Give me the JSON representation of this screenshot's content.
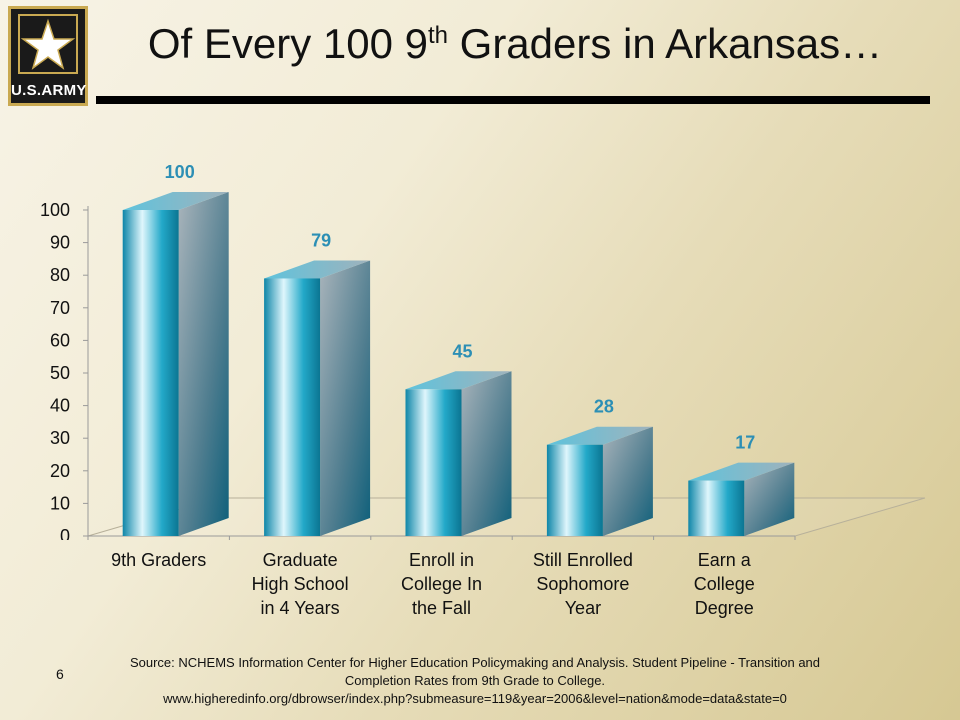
{
  "slide": {
    "title_main": "Of Every 100 9",
    "title_sup": "th",
    "title_end": " Graders in Arkansas…",
    "logo_text": "U.S.ARMY",
    "page_number": "6",
    "source_line1": "Source: NCHEMS Information Center for Higher Education Policymaking and Analysis. Student Pipeline - Transition and",
    "source_line2": "Completion Rates from 9th Grade to College.",
    "source_line3": "www.higheredinfo.org/dbrowser/index.php?submeasure=119&year=2006&level=nation&mode=data&state=0"
  },
  "chart_data": {
    "type": "bar",
    "categories": [
      "9th Graders",
      "Graduate High School in 4 Years",
      "Enroll in College In the Fall",
      "Still Enrolled Sophomore Year",
      "Earn a College Degree"
    ],
    "category_lines": [
      [
        "9th Graders"
      ],
      [
        "Graduate",
        "High School",
        "in 4 Years"
      ],
      [
        "Enroll in",
        "College In",
        "the Fall"
      ],
      [
        "Still Enrolled",
        "Sophomore",
        "Year"
      ],
      [
        "Earn a",
        "College",
        "Degree"
      ]
    ],
    "values": [
      100,
      79,
      45,
      28,
      17
    ],
    "yticks": [
      0,
      10,
      20,
      30,
      40,
      50,
      60,
      70,
      80,
      90,
      100
    ],
    "ylim": [
      0,
      100
    ],
    "bar_color": "#1a9fc0",
    "label_color": "#2c8fb5",
    "grid": false
  }
}
